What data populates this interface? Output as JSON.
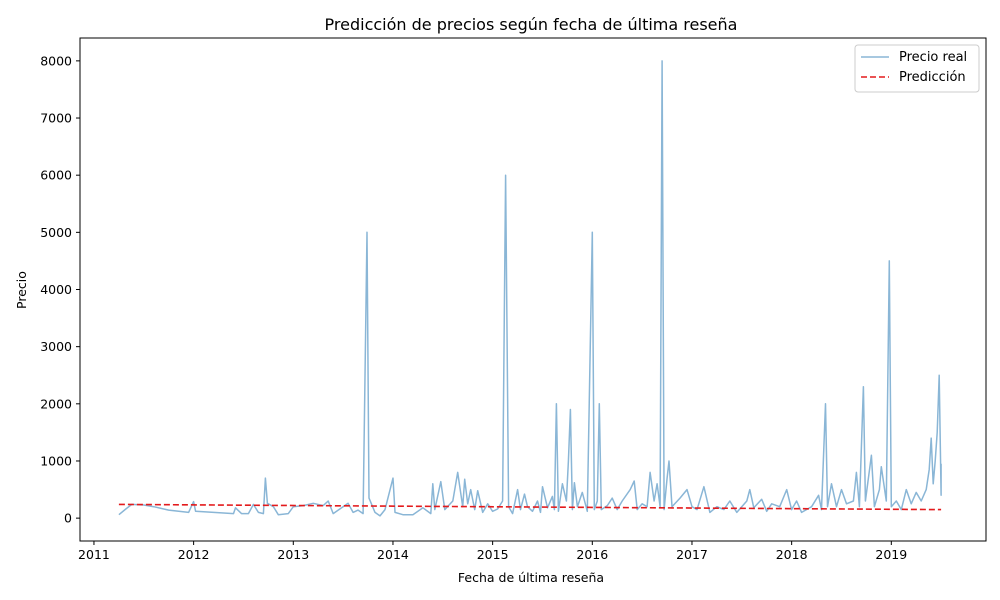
{
  "chart_data": {
    "type": "line",
    "title": "Predicción de precios según fecha de última reseña",
    "xlabel": "Fecha de última reseña",
    "ylabel": "Precio",
    "xlim": [
      2010.86,
      2019.95
    ],
    "ylim": [
      -400,
      8400
    ],
    "x_ticks": [
      2011,
      2012,
      2013,
      2014,
      2015,
      2016,
      2017,
      2018,
      2019
    ],
    "x_tick_labels": [
      "2011",
      "2012",
      "2013",
      "2014",
      "2015",
      "2016",
      "2017",
      "2018",
      "2019"
    ],
    "y_ticks": [
      0,
      1000,
      2000,
      3000,
      4000,
      5000,
      6000,
      7000,
      8000
    ],
    "y_tick_labels": [
      "0",
      "1000",
      "2000",
      "3000",
      "4000",
      "5000",
      "6000",
      "7000",
      "8000"
    ],
    "grid": false,
    "legend_position": "top-right",
    "series": [
      {
        "name": "Precio real",
        "color": "#8ab6d6",
        "style": "solid",
        "points": [
          [
            2011.25,
            60
          ],
          [
            2011.32,
            160
          ],
          [
            2011.38,
            240
          ],
          [
            2011.5,
            230
          ],
          [
            2011.6,
            200
          ],
          [
            2011.75,
            140
          ],
          [
            2011.85,
            120
          ],
          [
            2011.95,
            100
          ],
          [
            2012.0,
            290
          ],
          [
            2012.02,
            120
          ],
          [
            2012.2,
            100
          ],
          [
            2012.4,
            80
          ],
          [
            2012.42,
            180
          ],
          [
            2012.48,
            80
          ],
          [
            2012.55,
            80
          ],
          [
            2012.6,
            240
          ],
          [
            2012.65,
            100
          ],
          [
            2012.7,
            80
          ],
          [
            2012.72,
            700
          ],
          [
            2012.74,
            260
          ],
          [
            2012.8,
            200
          ],
          [
            2012.85,
            60
          ],
          [
            2012.95,
            80
          ],
          [
            2013.0,
            200
          ],
          [
            2013.1,
            220
          ],
          [
            2013.2,
            260
          ],
          [
            2013.3,
            220
          ],
          [
            2013.35,
            300
          ],
          [
            2013.4,
            80
          ],
          [
            2013.5,
            200
          ],
          [
            2013.55,
            260
          ],
          [
            2013.6,
            100
          ],
          [
            2013.65,
            140
          ],
          [
            2013.7,
            80
          ],
          [
            2013.74,
            5000
          ],
          [
            2013.76,
            350
          ],
          [
            2013.82,
            100
          ],
          [
            2013.87,
            40
          ],
          [
            2013.92,
            150
          ],
          [
            2014.0,
            700
          ],
          [
            2014.02,
            100
          ],
          [
            2014.1,
            60
          ],
          [
            2014.2,
            60
          ],
          [
            2014.3,
            180
          ],
          [
            2014.38,
            80
          ],
          [
            2014.4,
            600
          ],
          [
            2014.42,
            150
          ],
          [
            2014.48,
            640
          ],
          [
            2014.52,
            150
          ],
          [
            2014.6,
            300
          ],
          [
            2014.65,
            800
          ],
          [
            2014.7,
            200
          ],
          [
            2014.72,
            680
          ],
          [
            2014.75,
            250
          ],
          [
            2014.78,
            500
          ],
          [
            2014.82,
            150
          ],
          [
            2014.85,
            480
          ],
          [
            2014.9,
            100
          ],
          [
            2014.95,
            250
          ],
          [
            2015.0,
            120
          ],
          [
            2015.05,
            160
          ],
          [
            2015.1,
            300
          ],
          [
            2015.13,
            6000
          ],
          [
            2015.16,
            200
          ],
          [
            2015.2,
            80
          ],
          [
            2015.25,
            500
          ],
          [
            2015.28,
            150
          ],
          [
            2015.32,
            420
          ],
          [
            2015.35,
            200
          ],
          [
            2015.4,
            120
          ],
          [
            2015.45,
            300
          ],
          [
            2015.48,
            100
          ],
          [
            2015.5,
            550
          ],
          [
            2015.55,
            180
          ],
          [
            2015.6,
            380
          ],
          [
            2015.62,
            150
          ],
          [
            2015.64,
            2000
          ],
          [
            2015.66,
            120
          ],
          [
            2015.7,
            600
          ],
          [
            2015.74,
            300
          ],
          [
            2015.76,
            1000
          ],
          [
            2015.78,
            1900
          ],
          [
            2015.8,
            150
          ],
          [
            2015.82,
            620
          ],
          [
            2015.85,
            200
          ],
          [
            2015.9,
            450
          ],
          [
            2015.95,
            120
          ],
          [
            2016.0,
            5000
          ],
          [
            2016.02,
            150
          ],
          [
            2016.05,
            300
          ],
          [
            2016.07,
            2000
          ],
          [
            2016.09,
            150
          ],
          [
            2016.15,
            220
          ],
          [
            2016.2,
            350
          ],
          [
            2016.25,
            150
          ],
          [
            2016.3,
            300
          ],
          [
            2016.38,
            500
          ],
          [
            2016.42,
            650
          ],
          [
            2016.45,
            150
          ],
          [
            2016.5,
            250
          ],
          [
            2016.55,
            200
          ],
          [
            2016.58,
            800
          ],
          [
            2016.62,
            300
          ],
          [
            2016.65,
            600
          ],
          [
            2016.68,
            200
          ],
          [
            2016.7,
            8000
          ],
          [
            2016.72,
            150
          ],
          [
            2016.75,
            700
          ],
          [
            2016.77,
            1000
          ],
          [
            2016.8,
            200
          ],
          [
            2016.88,
            350
          ],
          [
            2016.95,
            500
          ],
          [
            2017.0,
            200
          ],
          [
            2017.05,
            150
          ],
          [
            2017.12,
            550
          ],
          [
            2017.18,
            100
          ],
          [
            2017.25,
            200
          ],
          [
            2017.32,
            150
          ],
          [
            2017.38,
            300
          ],
          [
            2017.45,
            100
          ],
          [
            2017.55,
            300
          ],
          [
            2017.58,
            500
          ],
          [
            2017.62,
            180
          ],
          [
            2017.7,
            330
          ],
          [
            2017.75,
            120
          ],
          [
            2017.8,
            250
          ],
          [
            2017.88,
            200
          ],
          [
            2017.95,
            500
          ],
          [
            2018.0,
            150
          ],
          [
            2018.05,
            300
          ],
          [
            2018.1,
            100
          ],
          [
            2018.2,
            200
          ],
          [
            2018.27,
            400
          ],
          [
            2018.3,
            150
          ],
          [
            2018.34,
            2000
          ],
          [
            2018.36,
            200
          ],
          [
            2018.4,
            600
          ],
          [
            2018.45,
            200
          ],
          [
            2018.5,
            500
          ],
          [
            2018.55,
            250
          ],
          [
            2018.62,
            300
          ],
          [
            2018.65,
            800
          ],
          [
            2018.68,
            200
          ],
          [
            2018.72,
            2300
          ],
          [
            2018.74,
            300
          ],
          [
            2018.8,
            1100
          ],
          [
            2018.83,
            200
          ],
          [
            2018.88,
            500
          ],
          [
            2018.9,
            900
          ],
          [
            2018.95,
            300
          ],
          [
            2018.98,
            4500
          ],
          [
            2019.0,
            200
          ],
          [
            2019.05,
            300
          ],
          [
            2019.1,
            150
          ],
          [
            2019.15,
            500
          ],
          [
            2019.2,
            250
          ],
          [
            2019.25,
            450
          ],
          [
            2019.3,
            300
          ],
          [
            2019.35,
            500
          ],
          [
            2019.38,
            850
          ],
          [
            2019.4,
            1400
          ],
          [
            2019.42,
            600
          ],
          [
            2019.44,
            1000
          ],
          [
            2019.46,
            1500
          ],
          [
            2019.48,
            2500
          ],
          [
            2019.5,
            400
          ],
          [
            2019.5,
            950
          ]
        ]
      },
      {
        "name": "Predicción",
        "color": "#e31a1c",
        "style": "dashed",
        "points": [
          [
            2011.25,
            240
          ],
          [
            2019.5,
            150
          ]
        ]
      }
    ]
  }
}
